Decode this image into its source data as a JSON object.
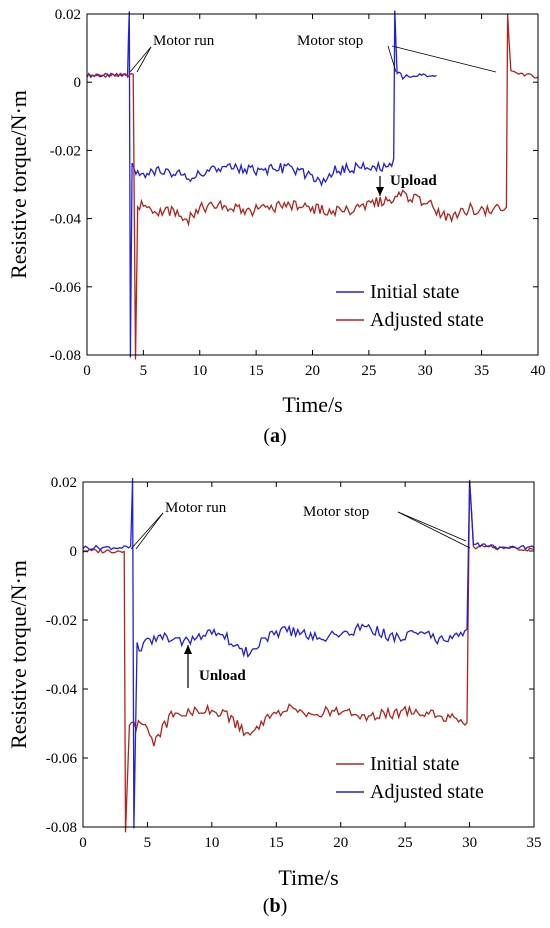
{
  "chart_data": [
    {
      "type": "line",
      "panel_label": "(a)",
      "xlabel": "Time/s",
      "ylabel": "Resistive torque/N·m",
      "xlim": [
        0,
        40
      ],
      "ylim": [
        -0.08,
        0.02
      ],
      "x_ticks": [
        "0",
        "5",
        "10",
        "15",
        "20",
        "25",
        "30",
        "35",
        "40"
      ],
      "y_ticks": [
        "0.02",
        "0",
        "-0.02",
        "-0.04",
        "-0.06",
        "-0.08"
      ],
      "grid": false,
      "legend_position": "bottom-right",
      "series": [
        {
          "name": "Initial state",
          "color": "#1f1fe0",
          "points": [
            [
              0,
              0.002
            ],
            [
              3.6,
              0.002
            ],
            [
              3.75,
              0.02
            ],
            [
              3.85,
              -0.08
            ],
            [
              4.0,
              -0.025
            ],
            [
              5,
              -0.027
            ],
            [
              7,
              -0.026
            ],
            [
              9,
              -0.028
            ],
            [
              11,
              -0.026
            ],
            [
              13,
              -0.025
            ],
            [
              15,
              -0.026
            ],
            [
              17,
              -0.025
            ],
            [
              19,
              -0.026
            ],
            [
              20.8,
              -0.03
            ],
            [
              22,
              -0.026
            ],
            [
              24,
              -0.025
            ],
            [
              26,
              -0.025
            ],
            [
              27.2,
              -0.024
            ],
            [
              27.3,
              0.02
            ],
            [
              27.5,
              0.003
            ],
            [
              28,
              0.0015
            ],
            [
              30,
              0.002
            ],
            [
              31,
              0.002
            ]
          ]
        },
        {
          "name": "Adjusted state",
          "color": "#b3231b",
          "points": [
            [
              0,
              0.002
            ],
            [
              4.1,
              0.002
            ],
            [
              4.3,
              -0.08
            ],
            [
              4.5,
              -0.036
            ],
            [
              6,
              -0.038
            ],
            [
              8,
              -0.038
            ],
            [
              8.5,
              -0.042
            ],
            [
              10,
              -0.037
            ],
            [
              12,
              -0.036
            ],
            [
              14,
              -0.038
            ],
            [
              16,
              -0.037
            ],
            [
              18,
              -0.036
            ],
            [
              20,
              -0.037
            ],
            [
              22,
              -0.038
            ],
            [
              24,
              -0.037
            ],
            [
              25,
              -0.036
            ],
            [
              27,
              -0.034
            ],
            [
              28,
              -0.033
            ],
            [
              30,
              -0.035
            ],
            [
              32,
              -0.04
            ],
            [
              34,
              -0.037
            ],
            [
              36,
              -0.038
            ],
            [
              37.2,
              -0.036
            ],
            [
              37.3,
              0.02
            ],
            [
              37.6,
              0.003
            ],
            [
              40,
              0.0015
            ]
          ]
        }
      ],
      "annotations": [
        {
          "text": "Motor run",
          "x": 6.3,
          "y": 0.0085,
          "bold": false
        },
        {
          "text": "Motor stop",
          "x": 21.6,
          "y": 0.0085,
          "bold": false
        },
        {
          "text": "Upload",
          "x": 28.5,
          "y": -0.0305,
          "bold": true
        }
      ]
    },
    {
      "type": "line",
      "panel_label": "(b)",
      "xlabel": "Time/s",
      "ylabel": "Resistive torque/N·m",
      "xlim": [
        0,
        35
      ],
      "ylim": [
        -0.08,
        0.02
      ],
      "x_ticks": [
        "0",
        "5",
        "10",
        "15",
        "20",
        "25",
        "30",
        "35"
      ],
      "y_ticks": [
        "0.02",
        "0",
        "-0.02",
        "-0.04",
        "-0.06",
        "-0.08"
      ],
      "grid": false,
      "legend_position": "bottom-right",
      "series": [
        {
          "name": "Initial state",
          "color": "#b3231b",
          "points": [
            [
              0,
              0.0
            ],
            [
              3.2,
              0.0
            ],
            [
              3.3,
              -0.08
            ],
            [
              3.6,
              -0.05
            ],
            [
              5,
              -0.051
            ],
            [
              5.5,
              -0.055
            ],
            [
              7,
              -0.047
            ],
            [
              9,
              -0.046
            ],
            [
              11,
              -0.047
            ],
            [
              12.8,
              -0.053
            ],
            [
              14,
              -0.049
            ],
            [
              16,
              -0.046
            ],
            [
              18,
              -0.047
            ],
            [
              20,
              -0.046
            ],
            [
              22,
              -0.048
            ],
            [
              24,
              -0.047
            ],
            [
              26,
              -0.046
            ],
            [
              28,
              -0.048
            ],
            [
              29.8,
              -0.049
            ],
            [
              30.0,
              0.02
            ],
            [
              30.3,
              0.001
            ],
            [
              32,
              0.001
            ],
            [
              35,
              0.0005
            ]
          ]
        },
        {
          "name": "Adjusted state",
          "color": "#1f1fe0",
          "points": [
            [
              0,
              0.001
            ],
            [
              3.7,
              0.001
            ],
            [
              3.85,
              0.02
            ],
            [
              3.95,
              -0.08
            ],
            [
              4.2,
              -0.028
            ],
            [
              6,
              -0.025
            ],
            [
              8,
              -0.026
            ],
            [
              10,
              -0.023
            ],
            [
              12,
              -0.027
            ],
            [
              12.8,
              -0.03
            ],
            [
              14,
              -0.025
            ],
            [
              16,
              -0.023
            ],
            [
              18,
              -0.025
            ],
            [
              20,
              -0.024
            ],
            [
              22,
              -0.022
            ],
            [
              24,
              -0.025
            ],
            [
              26,
              -0.024
            ],
            [
              28,
              -0.026
            ],
            [
              29.8,
              -0.024
            ],
            [
              30.0,
              0.02
            ],
            [
              30.3,
              0.002
            ],
            [
              32,
              0.001
            ],
            [
              35,
              0.001
            ]
          ]
        }
      ],
      "annotations": [
        {
          "text": "Motor run",
          "x": 6.9,
          "y": 0.012,
          "bold": false
        },
        {
          "text": "Motor stop",
          "x": 24.5,
          "y": 0.0095,
          "bold": false
        },
        {
          "text": "Unload",
          "x": 9.0,
          "y": -0.0375,
          "bold": true
        }
      ]
    }
  ]
}
